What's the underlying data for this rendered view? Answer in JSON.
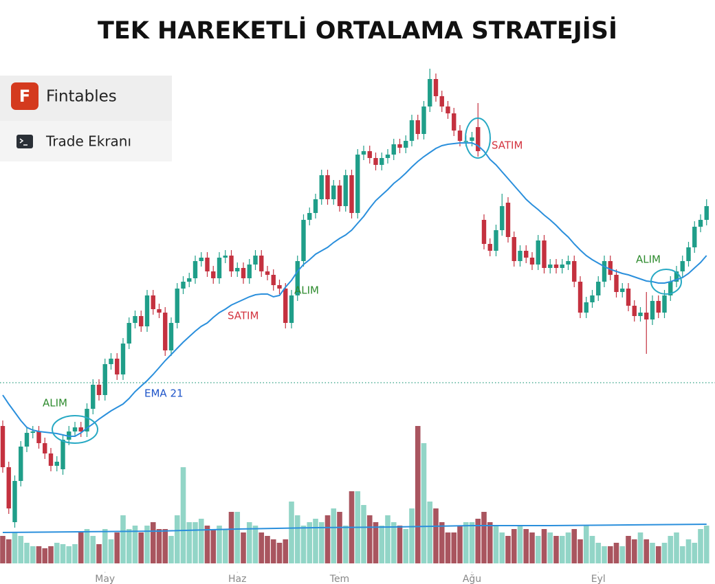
{
  "brand": {
    "name": "Fintables",
    "subtitle": "Trade Ekranı"
  },
  "chart_data": {
    "type": "candlestick",
    "title": "TEK HAREKETLİ ORTALAMA STRATEJİSİ",
    "open": [
      230,
      170,
      90,
      150,
      200,
      220,
      222,
      205,
      190,
      172,
      167,
      210,
      222,
      228,
      222,
      255,
      290,
      275,
      320,
      328,
      305,
      350,
      380,
      390,
      375,
      420,
      400,
      395,
      340,
      380,
      430,
      440,
      445,
      470,
      475,
      455,
      445,
      475,
      478,
      455,
      460,
      445,
      465,
      478,
      455,
      450,
      435,
      430,
      380,
      420,
      470,
      530,
      540,
      560,
      595,
      560,
      580,
      550,
      595,
      540,
      625,
      630,
      620,
      610,
      620,
      625,
      640,
      635,
      645,
      675,
      655,
      695,
      735,
      710,
      695,
      685,
      660,
      645,
      645,
      665,
      530,
      495,
      485,
      515,
      555,
      505,
      470,
      485,
      475,
      465,
      500,
      460,
      465,
      460,
      465,
      470,
      440,
      395,
      410,
      420,
      440,
      470,
      450,
      425,
      430,
      405,
      390,
      395,
      385,
      412,
      395,
      420,
      440,
      455,
      470,
      490,
      520,
      530
    ],
    "high": [
      238,
      178,
      158,
      208,
      228,
      230,
      230,
      213,
      198,
      186,
      218,
      230,
      236,
      236,
      263,
      298,
      298,
      328,
      336,
      336,
      358,
      388,
      398,
      398,
      428,
      428,
      408,
      403,
      388,
      438,
      448,
      453,
      478,
      483,
      483,
      463,
      483,
      486,
      486,
      468,
      468,
      473,
      486,
      486,
      463,
      458,
      443,
      438,
      428,
      478,
      538,
      548,
      568,
      603,
      603,
      588,
      588,
      603,
      603,
      633,
      638,
      638,
      628,
      628,
      633,
      648,
      648,
      653,
      683,
      683,
      703,
      750,
      743,
      718,
      703,
      693,
      668,
      653,
      658,
      700,
      538,
      503,
      523,
      568,
      563,
      513,
      493,
      493,
      483,
      508,
      508,
      473,
      473,
      473,
      478,
      478,
      448,
      418,
      428,
      448,
      478,
      478,
      458,
      438,
      438,
      413,
      403,
      425,
      420,
      420,
      428,
      448,
      463,
      478,
      498,
      528,
      538,
      560
    ],
    "low": [
      162,
      102,
      82,
      142,
      192,
      212,
      197,
      182,
      164,
      164,
      159,
      202,
      214,
      214,
      214,
      247,
      267,
      267,
      312,
      297,
      297,
      342,
      372,
      367,
      367,
      392,
      387,
      332,
      332,
      372,
      422,
      432,
      437,
      462,
      447,
      437,
      437,
      467,
      447,
      447,
      437,
      437,
      457,
      447,
      442,
      427,
      422,
      372,
      372,
      412,
      462,
      522,
      532,
      552,
      552,
      552,
      542,
      542,
      532,
      532,
      617,
      612,
      602,
      602,
      612,
      617,
      627,
      627,
      637,
      647,
      647,
      687,
      702,
      687,
      677,
      652,
      637,
      637,
      637,
      622,
      487,
      477,
      477,
      507,
      497,
      462,
      462,
      467,
      457,
      457,
      452,
      452,
      452,
      452,
      457,
      432,
      387,
      387,
      402,
      412,
      432,
      442,
      417,
      417,
      397,
      382,
      382,
      335,
      377,
      387,
      387,
      412,
      432,
      447,
      462,
      482,
      512,
      522
    ],
    "close": [
      170,
      110,
      150,
      200,
      220,
      222,
      205,
      190,
      172,
      178,
      210,
      222,
      228,
      222,
      255,
      290,
      275,
      320,
      328,
      305,
      350,
      380,
      390,
      375,
      420,
      400,
      395,
      340,
      380,
      430,
      440,
      445,
      470,
      475,
      455,
      445,
      475,
      478,
      455,
      460,
      445,
      465,
      478,
      455,
      450,
      435,
      430,
      380,
      420,
      470,
      530,
      540,
      560,
      595,
      560,
      580,
      550,
      595,
      540,
      625,
      630,
      620,
      610,
      620,
      625,
      640,
      635,
      645,
      675,
      655,
      695,
      735,
      710,
      695,
      685,
      660,
      645,
      645,
      650,
      630,
      495,
      485,
      515,
      550,
      505,
      470,
      485,
      475,
      465,
      500,
      460,
      465,
      460,
      465,
      470,
      440,
      395,
      410,
      420,
      440,
      470,
      450,
      425,
      430,
      405,
      390,
      395,
      385,
      412,
      395,
      420,
      440,
      455,
      470,
      490,
      520,
      530,
      550
    ],
    "ema": [
      275,
      262,
      250,
      238,
      228,
      224,
      222,
      221,
      220,
      219,
      217,
      215,
      215,
      220,
      227,
      233,
      240,
      246,
      252,
      257,
      262,
      270,
      280,
      288,
      296,
      305,
      315,
      325,
      334,
      343,
      352,
      360,
      368,
      375,
      380,
      388,
      395,
      400,
      406,
      410,
      414,
      418,
      421,
      422,
      422,
      418,
      420,
      432,
      442,
      455,
      465,
      472,
      480,
      485,
      490,
      497,
      503,
      508,
      515,
      525,
      535,
      547,
      558,
      566,
      574,
      583,
      590,
      598,
      607,
      615,
      622,
      628,
      634,
      638,
      640,
      641,
      642,
      642,
      642,
      638,
      630,
      618,
      610,
      600,
      590,
      580,
      570,
      560,
      552,
      545,
      537,
      530,
      522,
      513,
      505,
      495,
      486,
      478,
      472,
      467,
      462,
      458,
      455,
      452,
      450,
      447,
      444,
      441,
      440,
      438,
      438,
      440,
      443,
      446,
      452,
      460,
      468,
      478
    ],
    "volume": [
      40,
      35,
      45,
      40,
      30,
      25,
      25,
      22,
      25,
      30,
      28,
      25,
      28,
      45,
      50,
      40,
      28,
      50,
      35,
      45,
      70,
      50,
      55,
      45,
      55,
      60,
      50,
      50,
      40,
      70,
      140,
      60,
      60,
      65,
      55,
      50,
      55,
      50,
      75,
      75,
      45,
      60,
      55,
      45,
      40,
      35,
      30,
      35,
      90,
      70,
      55,
      60,
      65,
      60,
      70,
      80,
      75,
      55,
      105,
      105,
      85,
      70,
      60,
      55,
      70,
      60,
      55,
      50,
      80,
      200,
      175,
      90,
      80,
      60,
      45,
      45,
      55,
      60,
      60,
      65,
      75,
      60,
      55,
      45,
      40,
      50,
      55,
      50,
      45,
      40,
      50,
      45,
      40,
      40,
      45,
      50,
      35,
      55,
      40,
      30,
      25,
      25,
      30,
      25,
      40,
      35,
      45,
      35,
      30,
      25,
      30,
      40,
      45,
      25,
      35,
      30,
      50,
      55
    ],
    "volume_ma": {
      "x": [
        0,
        13,
        26,
        39,
        52,
        65,
        78,
        91,
        104,
        117
      ],
      "values": [
        45,
        46,
        47,
        50,
        52,
        53,
        55,
        55,
        56,
        57
      ]
    },
    "hline": 293,
    "ema_name": "EMA 21",
    "annotations": [
      "ALIM",
      "SATIM",
      "ALIM",
      "SATIM",
      "ALIM"
    ],
    "xlim": [
      -0.457,
      118.4
    ],
    "ylim": [
      0,
      750
    ],
    "vlim": [
      0,
      250
    ],
    "xticks": [
      {
        "value": 17,
        "label": "May"
      },
      {
        "value": 39,
        "label": "Haz"
      },
      {
        "value": 56,
        "label": "Tem"
      },
      {
        "value": 78,
        "label": "Ağu"
      },
      {
        "value": 99,
        "label": "Eyl"
      }
    ],
    "up_color": "#1f9e89",
    "down_color": "#c4313f",
    "volume_up_color": "#92d5c7",
    "volume_down_color": "#a9555f",
    "ema_color": "#2a8fdc",
    "hline_color": "#2a9d7f"
  }
}
